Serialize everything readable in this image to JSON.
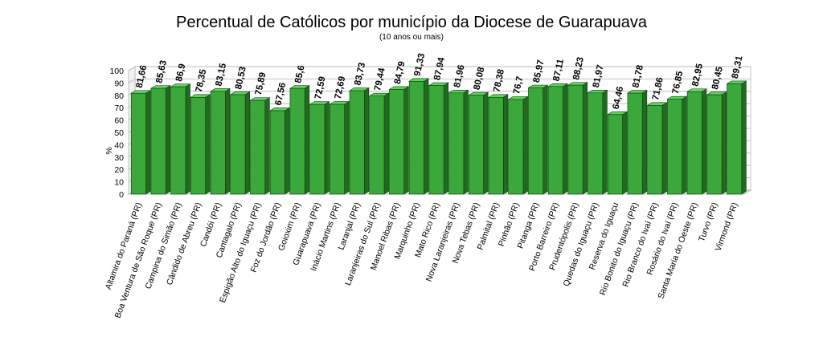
{
  "chart_data": {
    "type": "bar",
    "title": "Percentual de Católicos por município da Diocese de Guarapuava",
    "subtitle": "(10 anos ou mais)",
    "xlabel": "",
    "ylabel": "%",
    "ylim": [
      0,
      100
    ],
    "yticks": [
      0,
      10,
      20,
      30,
      40,
      50,
      60,
      70,
      80,
      90,
      100
    ],
    "grid": true,
    "legend": "none",
    "bar_color": "#3aa83a",
    "categories": [
      "Altamira do Paraná (PR)",
      "Boa Ventura de São Roque (PR)",
      "Campina do Simão (PR)",
      "Cândido de Abreu (PR)",
      "Candói (PR)",
      "Cantagalo (PR)",
      "Espigão Alto do Iguaçu (PR)",
      "Foz do Jordão (PR)",
      "Goioxim (PR)",
      "Guarapuava (PR)",
      "Inácio Martins (PR)",
      "Laranjal (PR)",
      "Laranjeiras do Sul (PR)",
      "Manoel Ribas (PR)",
      "Marquinho (PR)",
      "Mato Rico (PR)",
      "Nova Laranjeiras (PR)",
      "Nova Tebas (PR)",
      "Palmital (PR)",
      "Pinhão (PR)",
      "Pitanga (PR)",
      "Porto Barreiro (PR)",
      "Prudentópolis (PR)",
      "Quedas do Iguaçu (PR)",
      "Reserva do Iguaçu",
      "Rio Bonito do Iguaçu (PR)",
      "Rio Branco do Ivaí (PR)",
      "Rosário do Ivaí (PR)",
      "Santa Maria do Oeste (PR)",
      "Turvo (PR)",
      "Virmond (PR)"
    ],
    "values": [
      81.66,
      85.63,
      86.9,
      78.35,
      83.15,
      80.53,
      75.89,
      67.56,
      85.6,
      72.59,
      72.69,
      83.73,
      79.44,
      84.79,
      91.33,
      87.94,
      81.96,
      80.08,
      78.38,
      76.7,
      85.97,
      87.11,
      88.23,
      81.97,
      64.46,
      81.78,
      71.86,
      76.85,
      82.95,
      80.45,
      89.31
    ],
    "value_labels": [
      "81,66",
      "85,63",
      "86,9",
      "78,35",
      "83,15",
      "80,53",
      "75,89",
      "67,56",
      "85,6",
      "72,59",
      "72,69",
      "83,73",
      "79,44",
      "84,79",
      "91,33",
      "87,94",
      "81,96",
      "80,08",
      "78,38",
      "76,7",
      "85,97",
      "87,11",
      "88,23",
      "81,97",
      "64,46",
      "81,78",
      "71,86",
      "76,85",
      "82,95",
      "80,45",
      "89,31"
    ]
  }
}
